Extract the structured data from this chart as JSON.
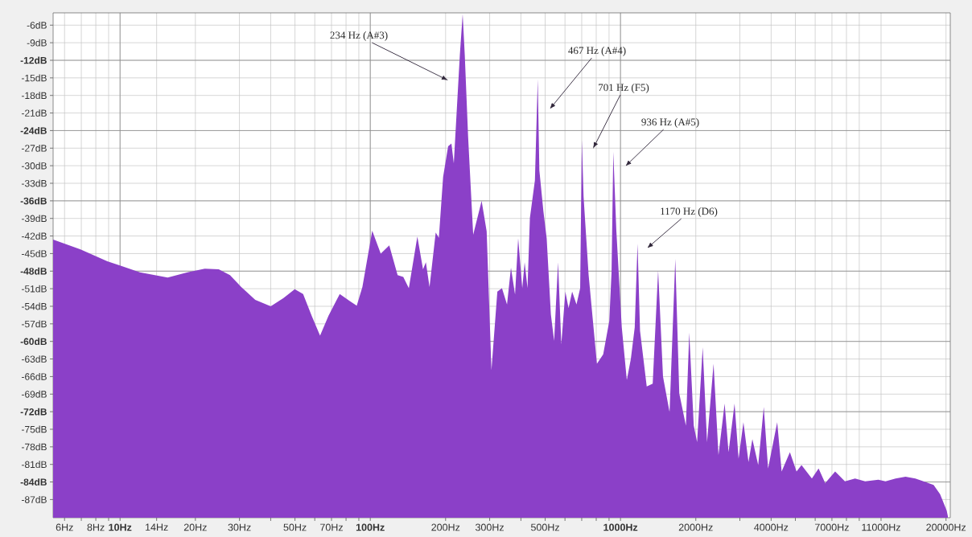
{
  "chart_data": {
    "type": "area",
    "color": "#8b40c8",
    "x": [
      5.4,
      6.95,
      8.89,
      10.1,
      12.0,
      15.5,
      18.6,
      21.8,
      24.8,
      27.5,
      30.5,
      34.7,
      40.0,
      45.0,
      49.9,
      53.9,
      58.3,
      63.0,
      68.1,
      75.5,
      82.8,
      88.3,
      93.0,
      101.8,
      110.1,
      119.1,
      128.6,
      135.5,
      142.6,
      154.2,
      162.5,
      166.8,
      172.5,
      182.6,
      188,
      195.5,
      204.7,
      211,
      215.7,
      222.5,
      228,
      234,
      238.6,
      246,
      257.8,
      278.6,
      291.8,
      305,
      322,
      336,
      352,
      365,
      379,
      390,
      405,
      414,
      425,
      434.5,
      455,
      467,
      474,
      492,
      507,
      527,
      543,
      563,
      580,
      602,
      620,
      641,
      667,
      690,
      701,
      712,
      746,
      805,
      853,
      902,
      921,
      936,
      962,
      1012,
      1060,
      1100,
      1140,
      1170,
      1197,
      1273,
      1345,
      1414,
      1479,
      1571,
      1656,
      1718,
      1826,
      1883,
      1963,
      2024,
      2131,
      2218,
      2355,
      2464,
      2608,
      2703,
      2857,
      2965,
      3100,
      3248,
      3366,
      3552,
      3738,
      3890,
      4230,
      4406,
      4754,
      5054,
      5290,
      5820,
      6191,
      6580,
      7210,
      7890,
      8660,
      9500,
      10730,
      11460,
      12570,
      13780,
      15080,
      16260,
      17840,
      18940,
      20130,
      20400
    ],
    "values": [
      -42.6,
      -44.3,
      -46.3,
      -47.1,
      -48.2,
      -49.1,
      -48.2,
      -47.6,
      -47.7,
      -48.7,
      -50.7,
      -52.9,
      -54.0,
      -52.6,
      -51.1,
      -51.9,
      -55.6,
      -59.0,
      -55.6,
      -51.9,
      -53.1,
      -53.9,
      -50.7,
      -41.1,
      -45.0,
      -43.6,
      -48.7,
      -49.0,
      -50.9,
      -42.1,
      -47.7,
      -46.5,
      -50.7,
      -41.4,
      -42.3,
      -31.9,
      -26.7,
      -26.2,
      -29.6,
      -19.2,
      -11.1,
      -4.1,
      -11.1,
      -25.0,
      -41.8,
      -36.0,
      -41.2,
      -64.9,
      -51.5,
      -50.9,
      -53.7,
      -47.4,
      -52.0,
      -42.4,
      -50.9,
      -46.5,
      -50.9,
      -38.9,
      -32.5,
      -15.2,
      -30.8,
      -37.8,
      -42.4,
      -55.4,
      -59.9,
      -46.5,
      -60.5,
      -51.5,
      -54.3,
      -51.5,
      -53.7,
      -50.9,
      -25.6,
      -35.3,
      -48.7,
      -63.8,
      -62.2,
      -56.5,
      -48.2,
      -27.6,
      -40.9,
      -57.6,
      -66.6,
      -63.0,
      -57.6,
      -43.3,
      -58.2,
      -67.7,
      -67.2,
      -47.9,
      -66.0,
      -72.1,
      -45.9,
      -68.9,
      -74.4,
      -58.5,
      -74.4,
      -77.2,
      -61.0,
      -77.2,
      -63.8,
      -79.4,
      -70.6,
      -78.9,
      -70.6,
      -80.0,
      -73.8,
      -80.6,
      -76.7,
      -81.1,
      -71.2,
      -81.7,
      -73.8,
      -82.2,
      -78.9,
      -82.2,
      -81.1,
      -83.4,
      -81.7,
      -84.2,
      -82.2,
      -83.9,
      -83.4,
      -83.9,
      -83.6,
      -83.9,
      -83.4,
      -83.1,
      -83.4,
      -83.9,
      -84.5,
      -86.1,
      -88.9,
      -90.1
    ],
    "log": "x",
    "xlim": [
      5.4,
      20800
    ],
    "ylim": [
      -90.1,
      -3.9
    ],
    "xticks": [
      {
        "value": 6,
        "label": "6Hz"
      },
      {
        "value": 7,
        "label": null
      },
      {
        "value": 8,
        "label": "8Hz"
      },
      {
        "value": 9,
        "label": null
      },
      {
        "value": 10,
        "label": "10Hz"
      },
      {
        "value": 14,
        "label": "14Hz"
      },
      {
        "value": 20,
        "label": "20Hz"
      },
      {
        "value": 30,
        "label": "30Hz"
      },
      {
        "value": 40,
        "label": null
      },
      {
        "value": 50,
        "label": "50Hz"
      },
      {
        "value": 60,
        "label": null
      },
      {
        "value": 70,
        "label": "70Hz"
      },
      {
        "value": 80,
        "label": null
      },
      {
        "value": 90,
        "label": null
      },
      {
        "value": 100,
        "label": "100Hz"
      },
      {
        "value": 200,
        "label": "200Hz"
      },
      {
        "value": 300,
        "label": "300Hz"
      },
      {
        "value": 400,
        "label": null
      },
      {
        "value": 500,
        "label": "500Hz"
      },
      {
        "value": 600,
        "label": null
      },
      {
        "value": 700,
        "label": null
      },
      {
        "value": 800,
        "label": null
      },
      {
        "value": 900,
        "label": null
      },
      {
        "value": 1000,
        "label": "1000Hz"
      },
      {
        "value": 2000,
        "label": "2000Hz"
      },
      {
        "value": 3000,
        "label": null
      },
      {
        "value": 4000,
        "label": "4000Hz"
      },
      {
        "value": 5000,
        "label": null
      },
      {
        "value": 6000,
        "label": null
      },
      {
        "value": 7000,
        "label": "7000Hz"
      },
      {
        "value": 8000,
        "label": null
      },
      {
        "value": 9000,
        "label": null
      },
      {
        "value": 11000,
        "label": "11000Hz"
      },
      {
        "value": 20000,
        "label": "20000Hz"
      }
    ],
    "yticks": [
      {
        "value": -6,
        "label": "-6dB"
      },
      {
        "value": -9,
        "label": "-9dB"
      },
      {
        "value": -12,
        "label": "-12dB"
      },
      {
        "value": -15,
        "label": "-15dB"
      },
      {
        "value": -18,
        "label": "-18dB"
      },
      {
        "value": -21,
        "label": "-21dB"
      },
      {
        "value": -24,
        "label": "-24dB"
      },
      {
        "value": -27,
        "label": "-27dB"
      },
      {
        "value": -30,
        "label": "-30dB"
      },
      {
        "value": -33,
        "label": "-33dB"
      },
      {
        "value": -36,
        "label": "-36dB"
      },
      {
        "value": -39,
        "label": "-39dB"
      },
      {
        "value": -42,
        "label": "-42dB"
      },
      {
        "value": -45,
        "label": "-45dB"
      },
      {
        "value": -48,
        "label": "-48dB"
      },
      {
        "value": -51,
        "label": "-51dB"
      },
      {
        "value": -54,
        "label": "-54dB"
      },
      {
        "value": -57,
        "label": "-57dB"
      },
      {
        "value": -60,
        "label": "-60dB"
      },
      {
        "value": -63,
        "label": "-63dB"
      },
      {
        "value": -66,
        "label": "-66dB"
      },
      {
        "value": -69,
        "label": "-69dB"
      },
      {
        "value": -72,
        "label": "-72dB"
      },
      {
        "value": -75,
        "label": "-75dB"
      },
      {
        "value": -78,
        "label": "-78dB"
      },
      {
        "value": -81,
        "label": "-81dB"
      },
      {
        "value": -84,
        "label": "-84dB"
      },
      {
        "value": -87,
        "label": "-87dB"
      }
    ],
    "grid": true,
    "annotations": [
      "234 Hz (A#3)",
      "467 Hz (A#4)",
      "701 Hz (F5)",
      "936 Hz (A#5)",
      "1170 Hz (D6)"
    ]
  }
}
